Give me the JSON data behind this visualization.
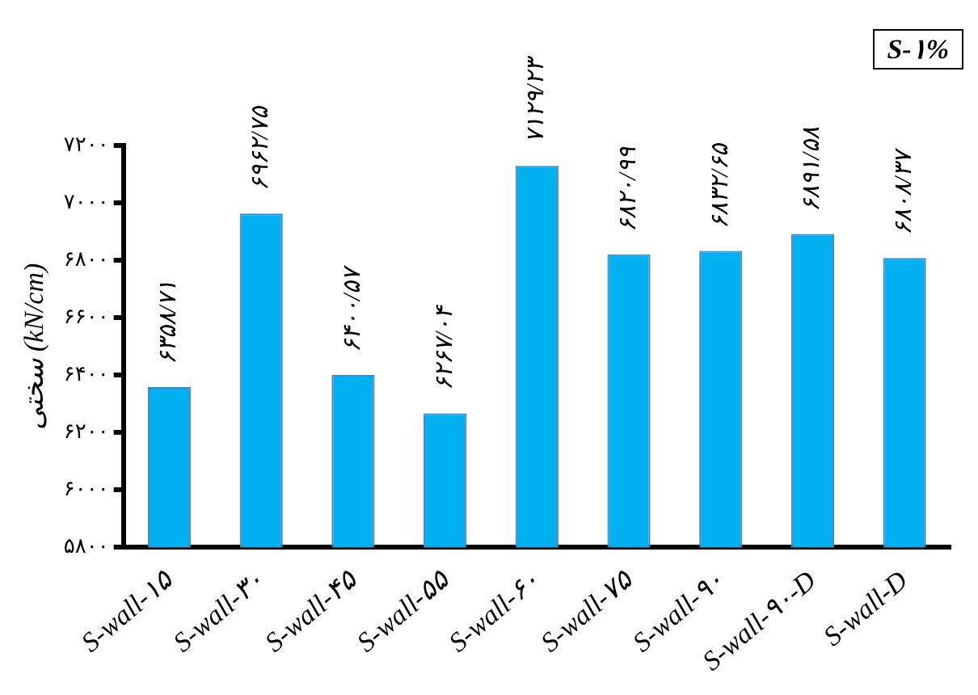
{
  "chart_data": {
    "type": "bar",
    "ylabel": "سختی (kN/cm)",
    "annotations": [
      "S-۱%"
    ],
    "categories": [
      "S-wall-۱۵",
      "S-wall-۳۰",
      "S-wall-۴۵",
      "S-wall-۵۵",
      "S-wall-۶۰",
      "S-wall-۷۵",
      "S-wall-۹۰",
      "S-wall-۹۰-D",
      "S-wall-D"
    ],
    "values": [
      6358.71,
      6962.75,
      6400.57,
      6267.04,
      7129.23,
      6820.99,
      6832.65,
      6891.58,
      6808.37
    ],
    "value_labels": [
      "۶۳۵۸/۷۱",
      "۶۹۶۲/۷۵",
      "۶۴۰۰/۵۷",
      "۶۲۶۷/۰۴",
      "۷۱۲۹/۲۳",
      "۶۸۲۰/۹۹",
      "۶۸۳۲/۶۵",
      "۶۸۹۱/۵۸",
      "۶۸۰۸/۳۷"
    ],
    "color": "#00b0f0",
    "ylim": [
      5800,
      7200
    ],
    "yticks": [
      {
        "value": 5800,
        "label": "۵۸۰۰"
      },
      {
        "value": 6000,
        "label": "۶۰۰۰"
      },
      {
        "value": 6200,
        "label": "۶۲۰۰"
      },
      {
        "value": 6400,
        "label": "۶۴۰۰"
      },
      {
        "value": 6600,
        "label": "۶۶۰۰"
      },
      {
        "value": 6800,
        "label": "۶۸۰۰"
      },
      {
        "value": 7000,
        "label": "۷۰۰۰"
      },
      {
        "value": 7200,
        "label": "۷۲۰۰"
      }
    ],
    "grid": false,
    "legend": false
  }
}
